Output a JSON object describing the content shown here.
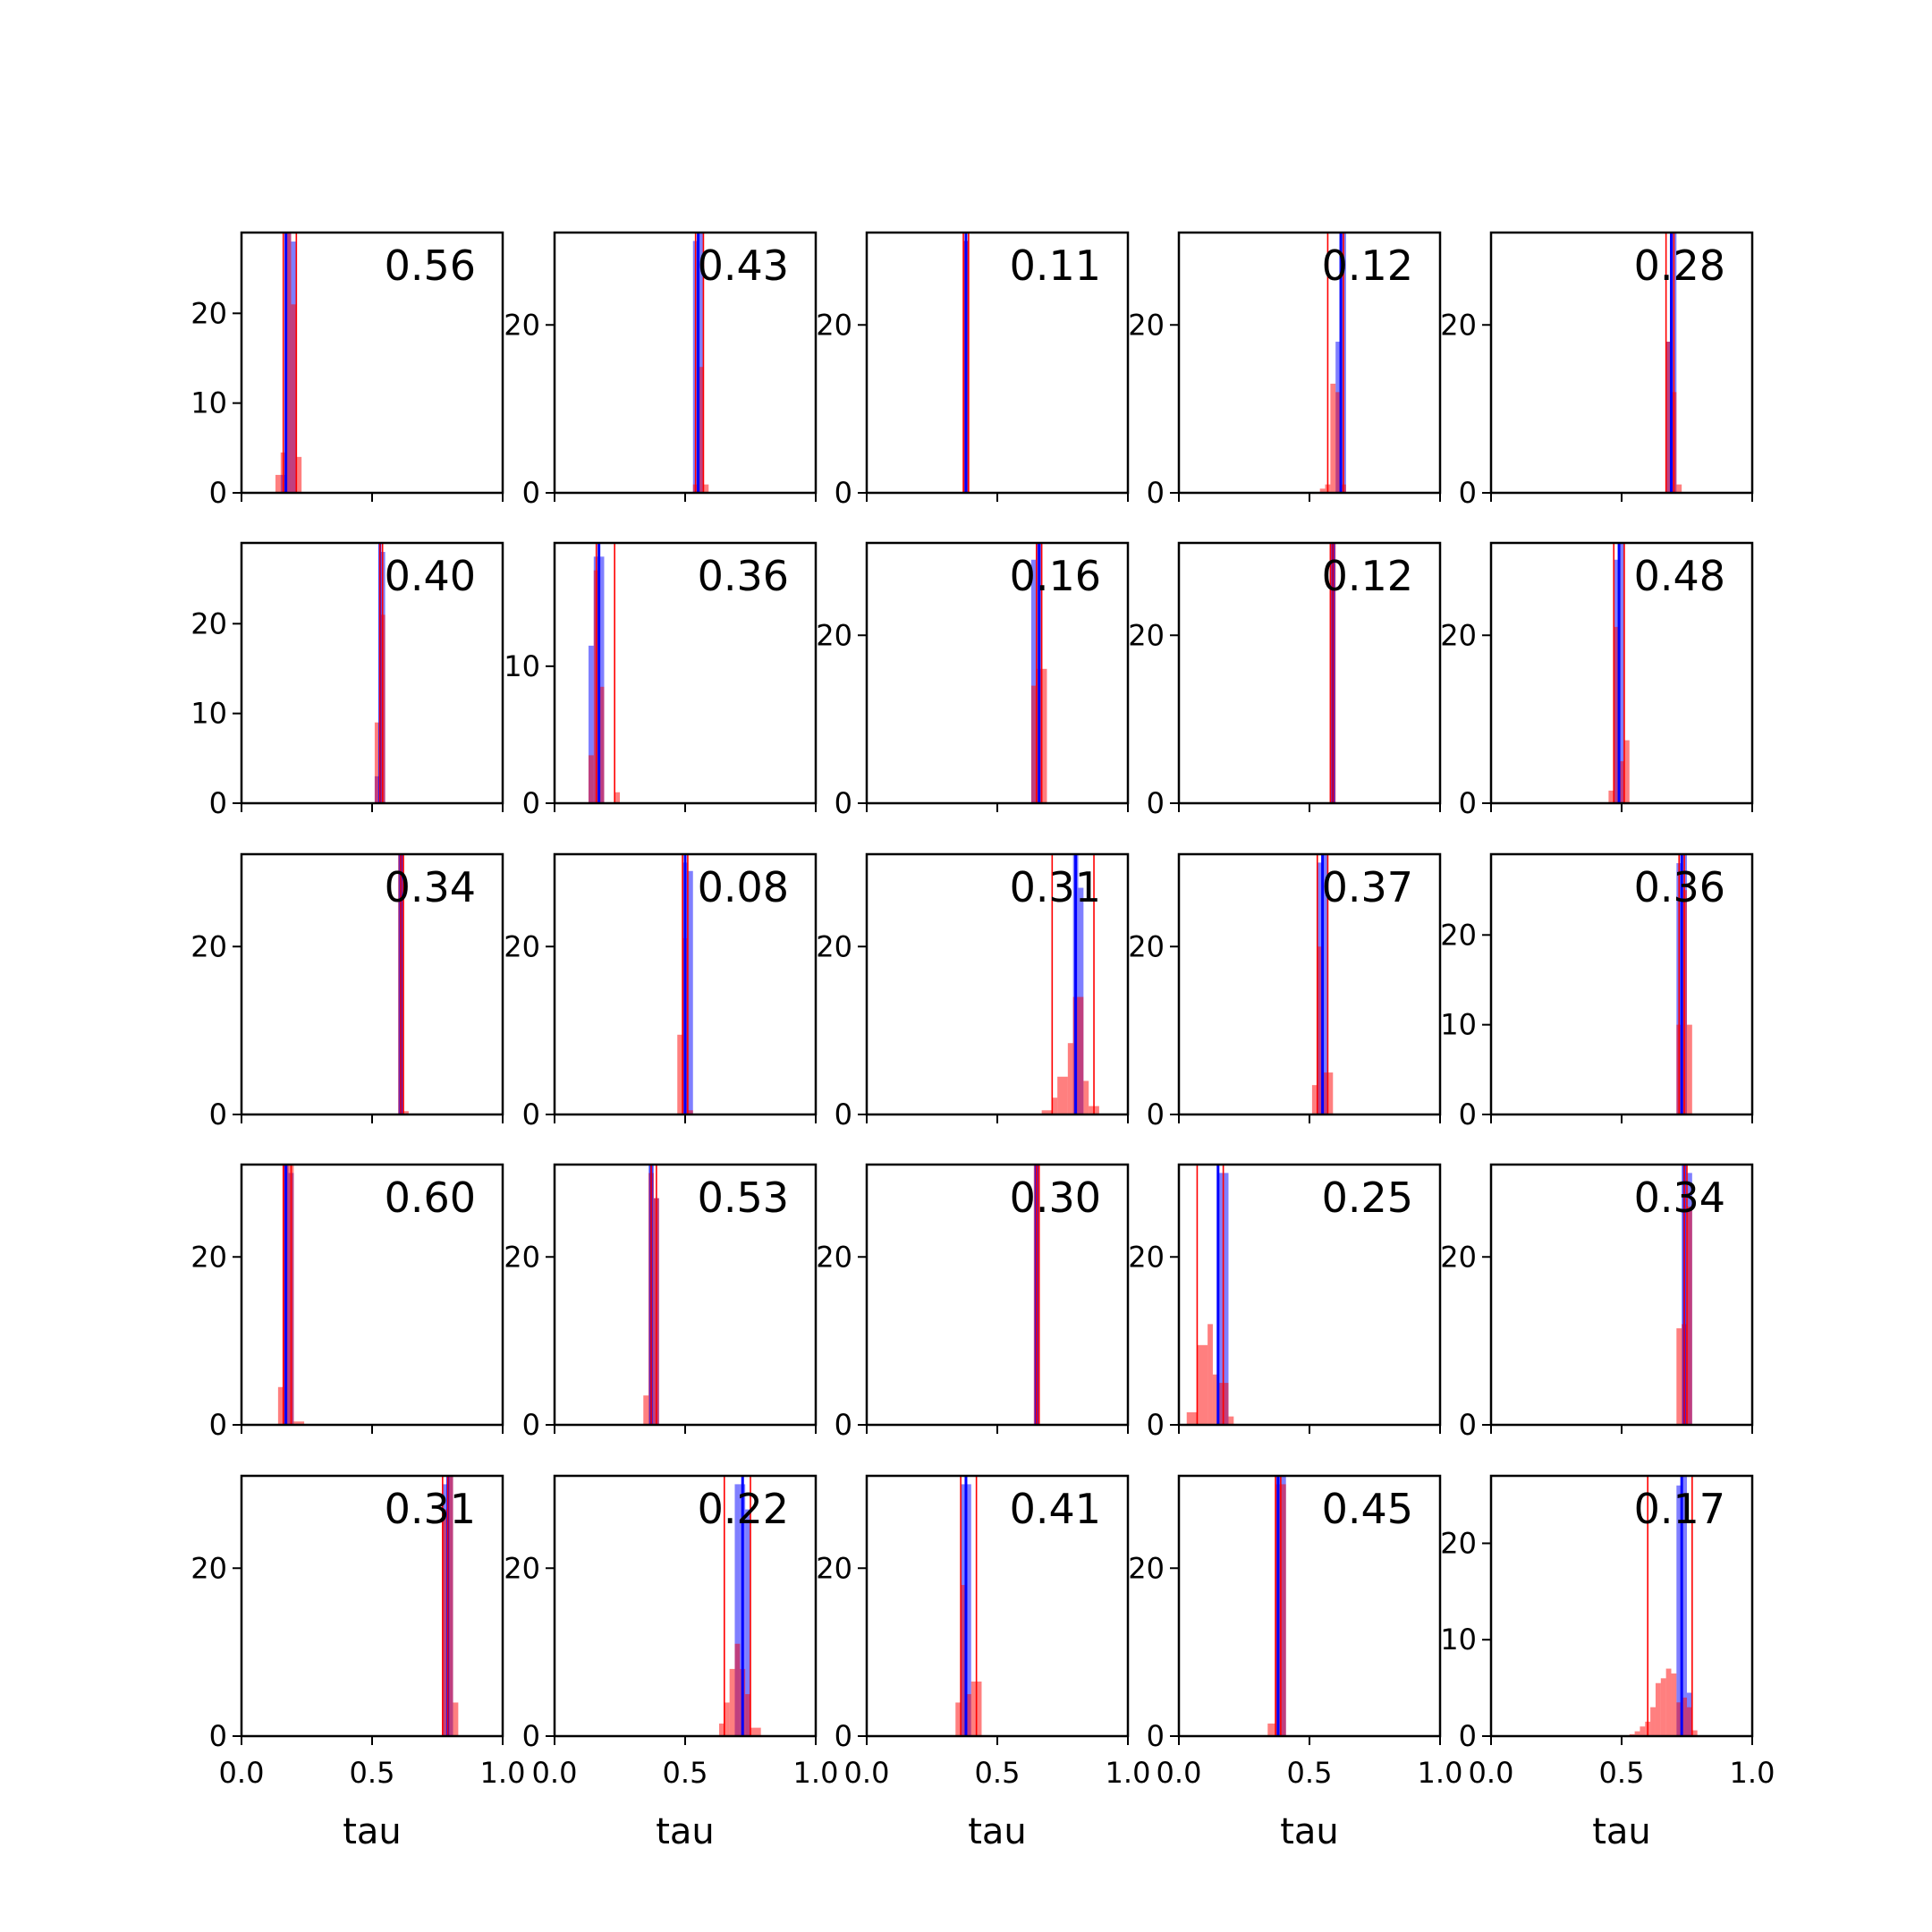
{
  "chart_data": {
    "type": "histogram-grid",
    "rows": 5,
    "cols": 5,
    "xlabel": "tau",
    "xlim": [
      0,
      1
    ],
    "x_ticks": [
      0,
      0.5,
      1
    ],
    "x_tick_labels": [
      "0.0",
      "0.5",
      "1.0"
    ],
    "colors": {
      "blue": "#0000ff",
      "red": "#ff0000",
      "axes": "#000000"
    },
    "panels": [
      {
        "label": "0.56",
        "ymax": 29,
        "yticks": [
          0,
          10,
          20
        ],
        "blue_line": 0.17,
        "red_lines": [
          0.16,
          0.21
        ],
        "blue_bars": [
          [
            0.15,
            0.17,
            2
          ],
          [
            0.17,
            0.19,
            29
          ],
          [
            0.19,
            0.21,
            28
          ]
        ],
        "red_bars": [
          [
            0.13,
            0.15,
            2
          ],
          [
            0.15,
            0.17,
            4.5
          ],
          [
            0.17,
            0.19,
            29
          ],
          [
            0.19,
            0.21,
            21
          ],
          [
            0.21,
            0.23,
            4
          ]
        ]
      },
      {
        "label": "0.43",
        "ymax": 31,
        "yticks": [
          0,
          20
        ],
        "blue_line": 0.55,
        "red_lines": [
          0.54,
          0.57
        ],
        "blue_bars": [
          [
            0.53,
            0.55,
            30
          ],
          [
            0.55,
            0.57,
            31
          ]
        ],
        "red_bars": [
          [
            0.53,
            0.55,
            1
          ],
          [
            0.55,
            0.57,
            15
          ],
          [
            0.57,
            0.59,
            1
          ]
        ]
      },
      {
        "label": "0.11",
        "ymax": 31,
        "yticks": [
          0,
          20
        ],
        "blue_line": 0.38,
        "red_lines": [
          0.37,
          0.39
        ],
        "blue_bars": [
          [
            0.37,
            0.39,
            30
          ]
        ],
        "red_bars": [
          [
            0.37,
            0.39,
            30
          ]
        ]
      },
      {
        "label": "0.12",
        "ymax": 31,
        "yticks": [
          0,
          20
        ],
        "blue_line": 0.62,
        "red_lines": [
          0.57,
          0.63
        ],
        "blue_bars": [
          [
            0.6,
            0.62,
            18
          ],
          [
            0.62,
            0.64,
            31
          ]
        ],
        "red_bars": [
          [
            0.54,
            0.56,
            0.5
          ],
          [
            0.56,
            0.58,
            1
          ],
          [
            0.58,
            0.6,
            13
          ],
          [
            0.6,
            0.62,
            12
          ],
          [
            0.62,
            0.64,
            1
          ]
        ]
      },
      {
        "label": "0.28",
        "ymax": 31,
        "yticks": [
          0,
          20
        ],
        "blue_line": 0.69,
        "red_lines": [
          0.67,
          0.7
        ],
        "blue_bars": [
          [
            0.67,
            0.69,
            18
          ],
          [
            0.69,
            0.71,
            31
          ]
        ],
        "red_bars": [
          [
            0.67,
            0.69,
            18
          ],
          [
            0.69,
            0.71,
            12
          ],
          [
            0.71,
            0.73,
            1
          ]
        ]
      },
      {
        "label": "0.40",
        "ymax": 29,
        "yticks": [
          0,
          10,
          20
        ],
        "blue_line": 0.53,
        "red_lines": [
          0.53,
          0.54
        ],
        "blue_bars": [
          [
            0.51,
            0.53,
            3
          ],
          [
            0.53,
            0.55,
            28
          ]
        ],
        "red_bars": [
          [
            0.51,
            0.53,
            9
          ],
          [
            0.53,
            0.55,
            21
          ]
        ]
      },
      {
        "label": "0.36",
        "ymax": 19,
        "yticks": [
          0,
          10
        ],
        "blue_line": 0.17,
        "red_lines": [
          0.16,
          0.23
        ],
        "blue_bars": [
          [
            0.13,
            0.15,
            11.5
          ],
          [
            0.15,
            0.17,
            18
          ],
          [
            0.17,
            0.19,
            18
          ]
        ],
        "red_bars": [
          [
            0.13,
            0.15,
            3.5
          ],
          [
            0.15,
            0.17,
            17
          ],
          [
            0.17,
            0.19,
            8.5
          ],
          [
            0.19,
            0.23,
            0
          ],
          [
            0.23,
            0.25,
            0.8
          ]
        ]
      },
      {
        "label": "0.16",
        "ymax": 31,
        "yticks": [
          0,
          20
        ],
        "blue_line": 0.66,
        "red_lines": [
          0.65,
          0.67
        ],
        "blue_bars": [
          [
            0.63,
            0.65,
            29
          ],
          [
            0.65,
            0.67,
            31
          ]
        ],
        "red_bars": [
          [
            0.63,
            0.65,
            14
          ],
          [
            0.65,
            0.67,
            16
          ],
          [
            0.67,
            0.69,
            16
          ]
        ]
      },
      {
        "label": "0.12",
        "ymax": 31,
        "yticks": [
          0,
          20
        ],
        "blue_line": 0.59,
        "red_lines": [
          0.58,
          0.59
        ],
        "blue_bars": [
          [
            0.58,
            0.6,
            31
          ]
        ],
        "red_bars": [
          [
            0.58,
            0.6,
            31
          ]
        ]
      },
      {
        "label": "0.48",
        "ymax": 31,
        "yticks": [
          0,
          20
        ],
        "blue_line": 0.49,
        "red_lines": [
          0.47,
          0.51
        ],
        "blue_bars": [
          [
            0.47,
            0.49,
            29
          ],
          [
            0.49,
            0.51,
            31
          ]
        ],
        "red_bars": [
          [
            0.45,
            0.47,
            1.5
          ],
          [
            0.47,
            0.49,
            21
          ],
          [
            0.49,
            0.51,
            5
          ],
          [
            0.51,
            0.53,
            7.5
          ]
        ]
      },
      {
        "label": "0.34",
        "ymax": 31,
        "yticks": [
          0,
          20
        ],
        "blue_line": 0.61,
        "red_lines": [
          0.61,
          0.62
        ],
        "blue_bars": [
          [
            0.6,
            0.62,
            31
          ]
        ],
        "red_bars": [
          [
            0.6,
            0.62,
            31
          ],
          [
            0.62,
            0.64,
            0.4
          ]
        ]
      },
      {
        "label": "0.08",
        "ymax": 31,
        "yticks": [
          0,
          20
        ],
        "blue_line": 0.5,
        "red_lines": [
          0.49,
          0.51
        ],
        "blue_bars": [
          [
            0.49,
            0.51,
            30
          ],
          [
            0.51,
            0.53,
            29
          ]
        ],
        "red_bars": [
          [
            0.47,
            0.49,
            9.5
          ],
          [
            0.49,
            0.51,
            21
          ],
          [
            0.51,
            0.53,
            0.5
          ]
        ]
      },
      {
        "label": "0.31",
        "ymax": 31,
        "yticks": [
          0,
          20
        ],
        "blue_line": 0.8,
        "red_lines": [
          0.71,
          0.87
        ],
        "blue_bars": [
          [
            0.79,
            0.81,
            31
          ],
          [
            0.81,
            0.83,
            27
          ]
        ],
        "red_bars": [
          [
            0.67,
            0.71,
            0.5
          ],
          [
            0.71,
            0.73,
            2
          ],
          [
            0.73,
            0.77,
            4.5
          ],
          [
            0.77,
            0.79,
            8.5
          ],
          [
            0.79,
            0.83,
            14
          ],
          [
            0.83,
            0.85,
            4
          ],
          [
            0.85,
            0.89,
            1
          ]
        ]
      },
      {
        "label": "0.37",
        "ymax": 31,
        "yticks": [
          0,
          20
        ],
        "blue_line": 0.55,
        "red_lines": [
          0.53,
          0.57
        ],
        "blue_bars": [
          [
            0.53,
            0.55,
            30
          ],
          [
            0.55,
            0.57,
            31
          ]
        ],
        "red_bars": [
          [
            0.51,
            0.53,
            3.5
          ],
          [
            0.53,
            0.55,
            20
          ],
          [
            0.55,
            0.57,
            5
          ],
          [
            0.57,
            0.59,
            5
          ]
        ]
      },
      {
        "label": "0.36",
        "ymax": 29,
        "yticks": [
          0,
          10,
          20
        ],
        "blue_line": 0.73,
        "red_lines": [
          0.72,
          0.74
        ],
        "blue_bars": [
          [
            0.71,
            0.73,
            28
          ],
          [
            0.73,
            0.75,
            29
          ]
        ],
        "red_bars": [
          [
            0.71,
            0.73,
            10
          ],
          [
            0.73,
            0.75,
            25
          ],
          [
            0.75,
            0.77,
            10
          ]
        ]
      },
      {
        "label": "0.60",
        "ymax": 31,
        "yticks": [
          0,
          20
        ],
        "blue_line": 0.17,
        "red_lines": [
          0.16,
          0.19
        ],
        "blue_bars": [
          [
            0.16,
            0.18,
            31
          ],
          [
            0.18,
            0.2,
            30
          ]
        ],
        "red_bars": [
          [
            0.14,
            0.16,
            4.5
          ],
          [
            0.16,
            0.18,
            31
          ],
          [
            0.18,
            0.2,
            31
          ],
          [
            0.2,
            0.24,
            0.4
          ]
        ]
      },
      {
        "label": "0.53",
        "ymax": 31,
        "yticks": [
          0,
          20
        ],
        "blue_line": 0.37,
        "red_lines": [
          0.37,
          0.39
        ],
        "blue_bars": [
          [
            0.36,
            0.38,
            31
          ],
          [
            0.38,
            0.4,
            27
          ]
        ],
        "red_bars": [
          [
            0.34,
            0.36,
            3.5
          ],
          [
            0.36,
            0.38,
            30
          ],
          [
            0.38,
            0.4,
            27
          ]
        ]
      },
      {
        "label": "0.30",
        "ymax": 31,
        "yticks": [
          0,
          20
        ],
        "blue_line": 0.65,
        "red_lines": [
          0.65,
          0.66
        ],
        "blue_bars": [
          [
            0.64,
            0.66,
            31
          ]
        ],
        "red_bars": [
          [
            0.64,
            0.66,
            31
          ]
        ]
      },
      {
        "label": "0.25",
        "ymax": 31,
        "yticks": [
          0,
          20
        ],
        "blue_line": 0.15,
        "red_lines": [
          0.07,
          0.17
        ],
        "blue_bars": [
          [
            0.15,
            0.17,
            30
          ],
          [
            0.17,
            0.19,
            30
          ]
        ],
        "red_bars": [
          [
            0.03,
            0.07,
            1.5
          ],
          [
            0.07,
            0.11,
            9.5
          ],
          [
            0.11,
            0.13,
            12
          ],
          [
            0.13,
            0.15,
            6
          ],
          [
            0.15,
            0.17,
            5
          ],
          [
            0.17,
            0.19,
            5
          ],
          [
            0.19,
            0.21,
            1
          ]
        ]
      },
      {
        "label": "0.34",
        "ymax": 31,
        "yticks": [
          0,
          20
        ],
        "blue_line": 0.74,
        "red_lines": [
          0.74,
          0.75
        ],
        "blue_bars": [
          [
            0.73,
            0.75,
            31
          ],
          [
            0.75,
            0.77,
            30
          ]
        ],
        "red_bars": [
          [
            0.71,
            0.73,
            11.5
          ],
          [
            0.73,
            0.75,
            12
          ],
          [
            0.75,
            0.77,
            26
          ]
        ]
      },
      {
        "label": "0.31",
        "ymax": 31,
        "yticks": [
          0,
          20
        ],
        "blue_line": 0.79,
        "red_lines": [
          0.77,
          0.79
        ],
        "blue_bars": [
          [
            0.77,
            0.79,
            30
          ],
          [
            0.79,
            0.81,
            31
          ]
        ],
        "red_bars": [
          [
            0.77,
            0.79,
            27
          ],
          [
            0.79,
            0.81,
            31
          ],
          [
            0.81,
            0.83,
            4
          ]
        ]
      },
      {
        "label": "0.22",
        "ymax": 31,
        "yticks": [
          0,
          20
        ],
        "blue_line": 0.72,
        "red_lines": [
          0.65,
          0.75
        ],
        "blue_bars": [
          [
            0.69,
            0.71,
            30
          ],
          [
            0.71,
            0.73,
            30
          ],
          [
            0.73,
            0.75,
            27
          ]
        ],
        "red_bars": [
          [
            0.63,
            0.65,
            1.5
          ],
          [
            0.65,
            0.67,
            4
          ],
          [
            0.67,
            0.69,
            8
          ],
          [
            0.69,
            0.71,
            11
          ],
          [
            0.71,
            0.73,
            8
          ],
          [
            0.73,
            0.75,
            5
          ],
          [
            0.75,
            0.79,
            1
          ]
        ]
      },
      {
        "label": "0.41",
        "ymax": 31,
        "yticks": [
          0,
          20
        ],
        "blue_line": 0.38,
        "red_lines": [
          0.36,
          0.42
        ],
        "blue_bars": [
          [
            0.36,
            0.38,
            30
          ],
          [
            0.38,
            0.4,
            30
          ]
        ],
        "red_bars": [
          [
            0.34,
            0.36,
            4
          ],
          [
            0.36,
            0.38,
            18
          ],
          [
            0.38,
            0.4,
            5
          ],
          [
            0.4,
            0.44,
            6.5
          ]
        ]
      },
      {
        "label": "0.45",
        "ymax": 31,
        "yticks": [
          0,
          20
        ],
        "blue_line": 0.38,
        "red_lines": [
          0.37,
          0.39
        ],
        "blue_bars": [
          [
            0.37,
            0.39,
            31
          ],
          [
            0.39,
            0.41,
            31
          ]
        ],
        "red_bars": [
          [
            0.34,
            0.37,
            1.5
          ],
          [
            0.37,
            0.39,
            30
          ],
          [
            0.39,
            0.41,
            30
          ]
        ]
      },
      {
        "label": "0.17",
        "ymax": 27,
        "yticks": [
          0,
          10,
          20
        ],
        "blue_line": 0.73,
        "red_lines": [
          0.6,
          0.77
        ],
        "blue_bars": [
          [
            0.71,
            0.73,
            26
          ],
          [
            0.73,
            0.75,
            27
          ],
          [
            0.75,
            0.77,
            4.5
          ]
        ],
        "red_bars": [
          [
            0.53,
            0.55,
            0.2
          ],
          [
            0.55,
            0.57,
            0.5
          ],
          [
            0.57,
            0.59,
            1
          ],
          [
            0.59,
            0.61,
            1.5
          ],
          [
            0.61,
            0.63,
            3
          ],
          [
            0.63,
            0.65,
            5.5
          ],
          [
            0.65,
            0.67,
            6
          ],
          [
            0.67,
            0.69,
            7
          ],
          [
            0.69,
            0.71,
            6.5
          ],
          [
            0.71,
            0.73,
            3.5
          ],
          [
            0.73,
            0.75,
            4
          ],
          [
            0.75,
            0.77,
            3
          ],
          [
            0.77,
            0.79,
            0.6
          ]
        ]
      }
    ]
  }
}
